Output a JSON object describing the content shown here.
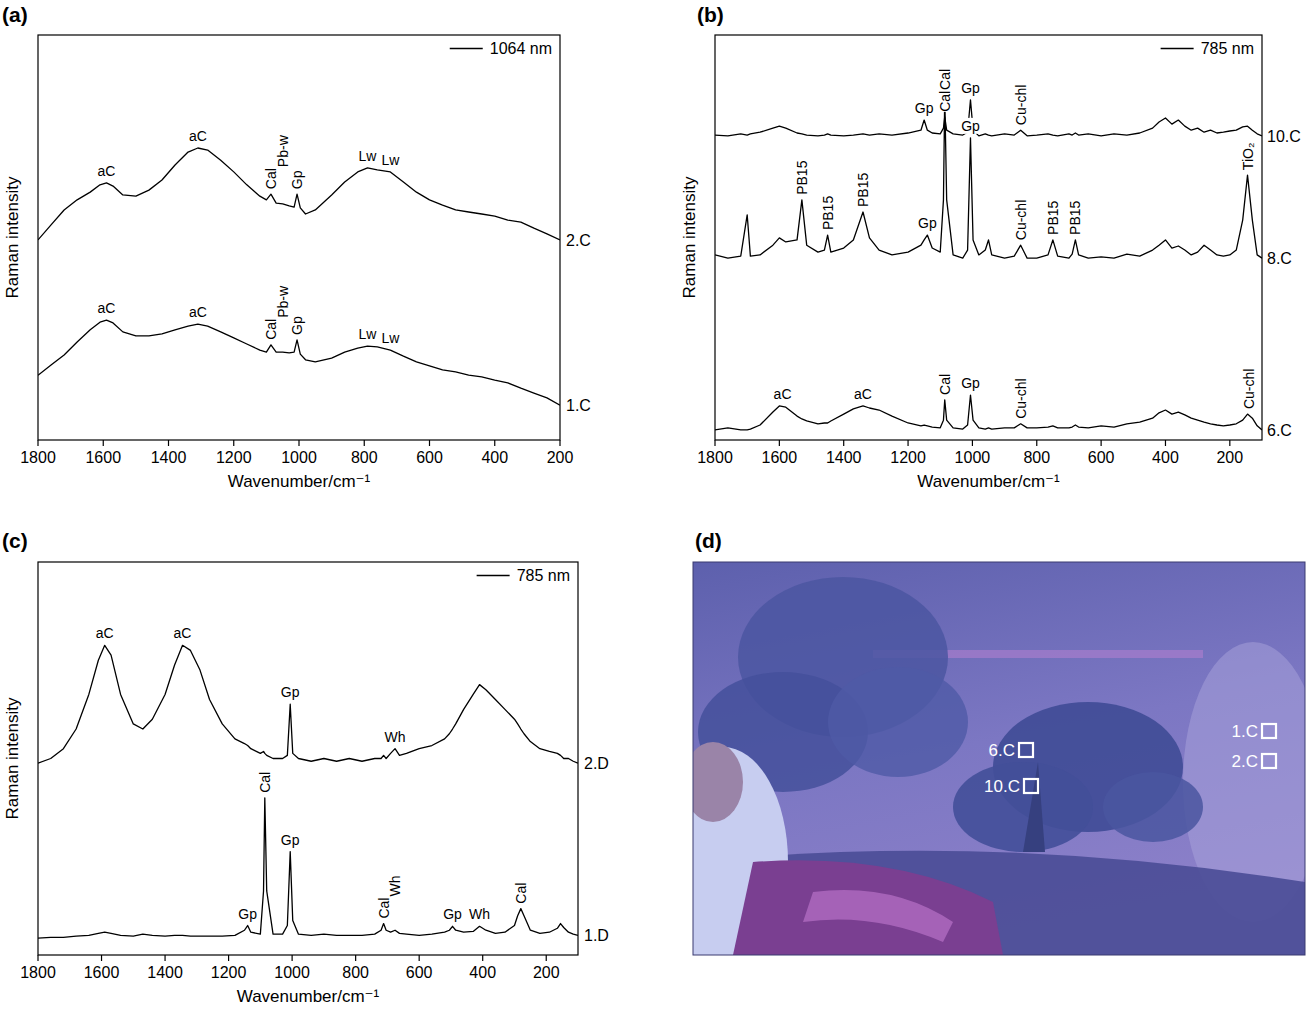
{
  "chart_data": [
    {
      "type": "line",
      "title": "(a)",
      "x_label": "Wavenumber/cm⁻¹",
      "y_label": "Raman intensity",
      "legend_text": "1064 nm",
      "legend": "upper right",
      "tick_labels": "x",
      "xlim": [
        1800,
        200
      ],
      "xticks": [
        1800,
        1600,
        1400,
        1200,
        1000,
        800,
        600,
        400,
        200
      ],
      "ylim": [
        0,
        100
      ],
      "x": [
        1800,
        1760,
        1720,
        1680,
        1640,
        1610,
        1590,
        1570,
        1540,
        1500,
        1460,
        1420,
        1380,
        1340,
        1310,
        1280,
        1240,
        1200,
        1160,
        1120,
        1100,
        1086,
        1070,
        1050,
        1030,
        1015,
        1006,
        996,
        980,
        950,
        900,
        860,
        820,
        790,
        760,
        720,
        680,
        640,
        600,
        560,
        520,
        480,
        440,
        400,
        360,
        320,
        280,
        240,
        200
      ],
      "series": [
        {
          "name": "2.C",
          "color": "#000000",
          "values": [
            49.4,
            53.1,
            56.8,
            59.3,
            61.2,
            63.0,
            63.5,
            62.7,
            60.5,
            60.2,
            61.7,
            64.2,
            67.9,
            71.1,
            72.1,
            71.6,
            69.1,
            66.2,
            63.0,
            60.2,
            59.3,
            60.7,
            58.5,
            58.3,
            57.8,
            57.5,
            60.7,
            57.3,
            55.8,
            56.8,
            60.5,
            63.7,
            66.2,
            67.2,
            66.7,
            66.2,
            63.7,
            61.2,
            59.3,
            58.0,
            56.8,
            56.3,
            55.8,
            55.3,
            54.3,
            53.8,
            52.3,
            50.9,
            49.4
          ]
        },
        {
          "name": "1.C",
          "color": "#000000",
          "values": [
            16.0,
            18.5,
            21.0,
            24.2,
            27.2,
            29.1,
            29.6,
            28.9,
            26.7,
            25.7,
            25.7,
            26.2,
            27.2,
            28.1,
            28.6,
            28.1,
            26.7,
            25.2,
            23.7,
            22.2,
            21.7,
            23.5,
            21.7,
            21.7,
            21.5,
            21.7,
            24.7,
            21.2,
            19.8,
            19.3,
            20.2,
            21.7,
            22.7,
            23.2,
            23.0,
            22.2,
            20.7,
            19.3,
            18.3,
            17.3,
            16.8,
            16.0,
            15.6,
            14.8,
            14.1,
            12.8,
            11.6,
            10.4,
            8.6
          ]
        }
      ],
      "annotations": [
        {
          "text": "aC",
          "x": 1590,
          "series": 0
        },
        {
          "text": "aC",
          "x": 1310,
          "series": 0
        },
        {
          "text": "Cal",
          "x": 1086,
          "series": 0
        },
        {
          "text": "Pb-w",
          "x": 1050,
          "series": 0
        },
        {
          "text": "Gp",
          "x": 1006,
          "series": 0
        },
        {
          "text": "Lw",
          "x": 790,
          "series": 0
        },
        {
          "text": "Lw",
          "x": 720,
          "series": 0
        },
        {
          "text": "aC",
          "x": 1590,
          "series": 1
        },
        {
          "text": "aC",
          "x": 1310,
          "series": 1
        },
        {
          "text": "Cal",
          "x": 1086,
          "series": 1
        },
        {
          "text": "Pb-w",
          "x": 1050,
          "series": 1
        },
        {
          "text": "Gp",
          "x": 1006,
          "series": 1
        },
        {
          "text": "Lw",
          "x": 790,
          "series": 1
        },
        {
          "text": "Lw",
          "x": 720,
          "series": 1
        }
      ]
    },
    {
      "type": "line",
      "title": "(b)",
      "x_label": "Wavenumber/cm⁻¹",
      "y_label": "Raman intensity",
      "legend_text": "785 nm",
      "legend": "upper right",
      "tick_labels": "x",
      "xlim": [
        1800,
        100
      ],
      "xticks": [
        1800,
        1600,
        1400,
        1200,
        1000,
        800,
        600,
        400,
        200
      ],
      "ylim": [
        0,
        100
      ],
      "x": [
        1800,
        1760,
        1720,
        1700,
        1690,
        1660,
        1620,
        1600,
        1580,
        1545,
        1530,
        1515,
        1480,
        1460,
        1450,
        1440,
        1400,
        1370,
        1340,
        1320,
        1290,
        1250,
        1200,
        1160,
        1150,
        1140,
        1125,
        1100,
        1090,
        1086,
        1080,
        1060,
        1030,
        1015,
        1006,
        998,
        980,
        960,
        950,
        940,
        900,
        870,
        850,
        830,
        800,
        765,
        750,
        735,
        700,
        690,
        680,
        670,
        640,
        600,
        560,
        520,
        480,
        440,
        420,
        400,
        380,
        360,
        340,
        320,
        300,
        280,
        260,
        240,
        220,
        200,
        180,
        160,
        145,
        130,
        115,
        100
      ],
      "series": [
        {
          "name": "10.C",
          "color": "#000000",
          "values": [
            75.3,
            75.1,
            75.6,
            75.3,
            75.6,
            76.0,
            77.0,
            77.5,
            77.0,
            75.8,
            75.6,
            75.3,
            75.1,
            75.3,
            75.6,
            75.3,
            75.1,
            75.3,
            75.6,
            75.3,
            75.6,
            75.3,
            75.8,
            76.5,
            79.0,
            76.5,
            75.8,
            75.6,
            77.0,
            79.8,
            76.5,
            75.6,
            75.3,
            76.0,
            84.0,
            76.5,
            75.1,
            75.6,
            75.3,
            75.1,
            75.6,
            75.3,
            76.5,
            75.1,
            75.3,
            75.6,
            75.3,
            75.1,
            75.6,
            75.3,
            75.8,
            75.3,
            75.6,
            75.1,
            75.6,
            75.3,
            75.8,
            77.0,
            78.5,
            79.5,
            78.0,
            79.0,
            77.5,
            76.5,
            77.0,
            76.0,
            76.5,
            75.8,
            76.0,
            76.3,
            76.5,
            77.3,
            77.5,
            76.5,
            75.6,
            75.1
          ]
        },
        {
          "name": "8.C",
          "color": "#000000",
          "values": [
            45.7,
            44.9,
            45.4,
            55.6,
            45.4,
            45.7,
            48.1,
            49.9,
            48.9,
            49.4,
            59.3,
            48.1,
            46.4,
            46.9,
            50.6,
            46.4,
            47.4,
            49.4,
            56.3,
            49.9,
            46.9,
            45.7,
            46.4,
            48.1,
            49.4,
            50.6,
            47.4,
            46.4,
            59.3,
            85.2,
            59.3,
            45.7,
            44.9,
            46.9,
            74.6,
            49.4,
            45.7,
            46.9,
            49.4,
            45.7,
            44.9,
            45.4,
            48.1,
            44.9,
            44.9,
            45.7,
            49.4,
            45.4,
            44.9,
            45.9,
            49.4,
            45.7,
            44.9,
            45.2,
            44.9,
            45.9,
            45.4,
            46.9,
            48.1,
            49.4,
            47.4,
            47.9,
            46.9,
            45.7,
            46.4,
            48.1,
            46.9,
            45.7,
            45.4,
            45.7,
            46.9,
            54.3,
            65.4,
            54.3,
            45.7,
            44.9
          ]
        },
        {
          "name": "6.C",
          "color": "#000000",
          "values": [
            2.5,
            3.0,
            2.5,
            2.5,
            2.7,
            3.7,
            6.9,
            8.4,
            8.1,
            5.9,
            5.2,
            4.7,
            4.0,
            4.2,
            4.2,
            4.7,
            6.4,
            7.7,
            8.4,
            7.9,
            7.4,
            5.9,
            4.2,
            3.5,
            3.7,
            3.5,
            3.2,
            3.0,
            4.9,
            9.9,
            4.9,
            3.0,
            2.7,
            3.7,
            11.1,
            4.9,
            3.0,
            2.7,
            3.0,
            2.7,
            3.0,
            3.0,
            4.0,
            3.0,
            3.0,
            3.2,
            3.5,
            3.0,
            3.0,
            3.2,
            3.7,
            3.2,
            3.0,
            3.5,
            3.2,
            4.0,
            4.4,
            5.4,
            6.7,
            7.4,
            6.4,
            6.9,
            6.2,
            5.4,
            4.9,
            4.4,
            4.0,
            3.7,
            3.5,
            3.7,
            4.0,
            4.9,
            6.4,
            5.4,
            3.5,
            2.5
          ]
        }
      ],
      "annotations": [
        {
          "text": "Gp",
          "x": 1150,
          "series": 0
        },
        {
          "text": "Cal",
          "x": 1086,
          "series": 0
        },
        {
          "text": "Gp",
          "x": 1006,
          "series": 0
        },
        {
          "text": "Cu-chl",
          "x": 850,
          "series": 0
        },
        {
          "text": "PB15",
          "x": 1530,
          "series": 1
        },
        {
          "text": "PB15",
          "x": 1450,
          "series": 1
        },
        {
          "text": "PB15",
          "x": 1340,
          "series": 1
        },
        {
          "text": "Gp",
          "x": 1140,
          "series": 1
        },
        {
          "text": "Cal",
          "x": 1086,
          "series": 1
        },
        {
          "text": "Gp",
          "x": 1006,
          "series": 1
        },
        {
          "text": "Cu-chl",
          "x": 850,
          "series": 1
        },
        {
          "text": "PB15",
          "x": 750,
          "series": 1
        },
        {
          "text": "PB15",
          "x": 680,
          "series": 1
        },
        {
          "text": "TiO₂",
          "x": 145,
          "series": 1
        },
        {
          "text": "aC",
          "x": 1590,
          "series": 2
        },
        {
          "text": "aC",
          "x": 1340,
          "series": 2
        },
        {
          "text": "Cal",
          "x": 1086,
          "series": 2
        },
        {
          "text": "Gp",
          "x": 1006,
          "series": 2
        },
        {
          "text": "Cu-chl",
          "x": 850,
          "series": 2
        },
        {
          "text": "Cu-chl",
          "x": 140,
          "series": 2
        }
      ]
    },
    {
      "type": "line",
      "title": "(c)",
      "x_label": "Wavenumber/cm⁻¹",
      "y_label": "Raman intensity",
      "legend_text": "785 nm",
      "legend": "upper right",
      "tick_labels": "x",
      "xlim": [
        1800,
        100
      ],
      "xticks": [
        1800,
        1600,
        1400,
        1200,
        1000,
        800,
        600,
        400,
        200
      ],
      "ylim": [
        0,
        100
      ],
      "x": [
        1800,
        1760,
        1720,
        1680,
        1640,
        1610,
        1590,
        1570,
        1540,
        1500,
        1470,
        1440,
        1400,
        1370,
        1345,
        1320,
        1290,
        1260,
        1220,
        1180,
        1150,
        1140,
        1130,
        1100,
        1090,
        1086,
        1080,
        1060,
        1030,
        1015,
        1006,
        998,
        980,
        940,
        900,
        860,
        820,
        780,
        740,
        720,
        712,
        704,
        690,
        676,
        662,
        640,
        600,
        560,
        520,
        505,
        495,
        485,
        460,
        430,
        410,
        390,
        360,
        330,
        300,
        290,
        280,
        270,
        250,
        220,
        190,
        165,
        155,
        145,
        130,
        115,
        100
      ],
      "series": [
        {
          "name": "2.D",
          "color": "#000000",
          "values": [
            48.8,
            50.0,
            52.5,
            57.5,
            66.3,
            75.0,
            78.8,
            76.3,
            66.3,
            58.8,
            57.5,
            60.0,
            66.3,
            73.8,
            78.8,
            77.5,
            72.5,
            65.0,
            58.8,
            55.0,
            53.8,
            53.3,
            52.5,
            51.3,
            51.8,
            51.3,
            50.8,
            50.0,
            50.0,
            50.8,
            63.8,
            51.3,
            50.0,
            49.3,
            50.0,
            49.3,
            50.0,
            49.3,
            50.0,
            50.0,
            50.8,
            50.0,
            51.3,
            52.5,
            50.8,
            51.3,
            52.5,
            53.3,
            55.0,
            56.3,
            57.5,
            58.8,
            62.5,
            66.3,
            68.8,
            67.5,
            65.0,
            62.5,
            60.0,
            58.8,
            57.5,
            56.3,
            54.3,
            52.5,
            51.8,
            51.3,
            50.8,
            50.0,
            50.0,
            49.3,
            48.8
          ]
        },
        {
          "name": "1.D",
          "color": "#000000",
          "values": [
            4.3,
            4.5,
            4.5,
            4.8,
            5.0,
            5.5,
            5.8,
            5.5,
            5.0,
            4.8,
            5.3,
            5.0,
            4.8,
            5.0,
            5.0,
            4.8,
            4.8,
            4.8,
            4.8,
            5.0,
            6.3,
            7.5,
            5.8,
            5.3,
            16.3,
            40.0,
            16.3,
            5.3,
            5.3,
            7.5,
            26.3,
            8.8,
            5.3,
            5.0,
            5.3,
            5.0,
            5.0,
            5.0,
            5.3,
            6.3,
            8.0,
            6.3,
            5.8,
            6.3,
            5.5,
            5.3,
            5.0,
            5.3,
            5.8,
            6.3,
            7.3,
            6.3,
            5.8,
            6.0,
            7.3,
            6.3,
            5.5,
            5.8,
            7.5,
            10.0,
            11.8,
            10.0,
            6.3,
            5.5,
            5.8,
            6.8,
            8.0,
            7.0,
            5.8,
            5.3,
            5.0
          ]
        }
      ],
      "annotations": [
        {
          "text": "aC",
          "x": 1590,
          "series": 0
        },
        {
          "text": "aC",
          "x": 1345,
          "series": 0
        },
        {
          "text": "Gp",
          "x": 1006,
          "series": 0
        },
        {
          "text": "Wh",
          "x": 676,
          "series": 0
        },
        {
          "text": "Gp",
          "x": 1140,
          "series": 1
        },
        {
          "text": "Cal",
          "x": 1086,
          "series": 1
        },
        {
          "text": "Gp",
          "x": 1006,
          "series": 1
        },
        {
          "text": "Cal",
          "x": 712,
          "series": 1
        },
        {
          "text": "Wh",
          "x": 676,
          "series": 1
        },
        {
          "text": "Gp",
          "x": 495,
          "series": 1
        },
        {
          "text": "Wh",
          "x": 410,
          "series": 1
        },
        {
          "text": "Cal",
          "x": 280,
          "series": 1
        }
      ]
    }
  ],
  "photo": {
    "title": "(d)",
    "markers": [
      {
        "label": "6.C"
      },
      {
        "label": "10.C"
      },
      {
        "label": "1.C"
      },
      {
        "label": "2.C"
      }
    ]
  }
}
